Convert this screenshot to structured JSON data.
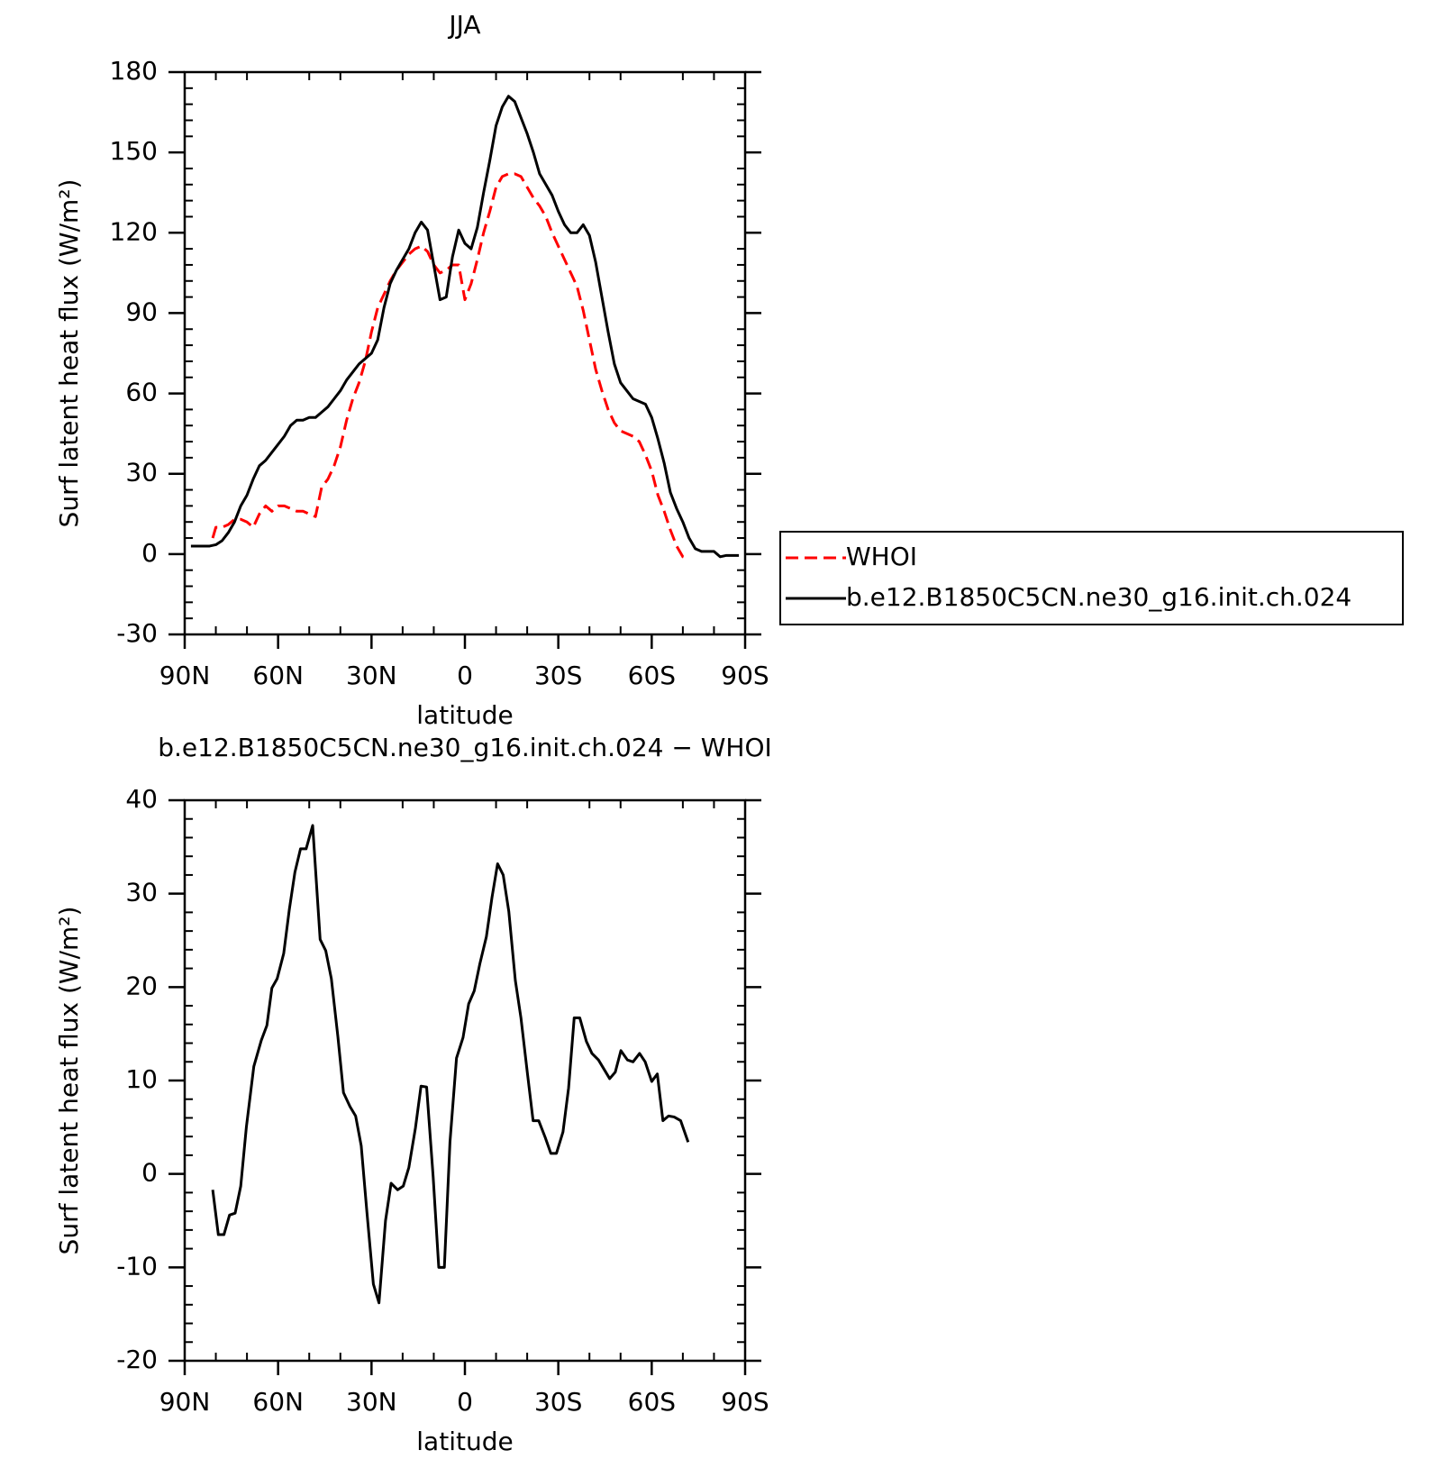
{
  "chart_data": [
    {
      "type": "line",
      "title": "JJA",
      "xlabel": "latitude",
      "ylabel": "Surf latent heat flux (W/m²)",
      "xlim": [
        90,
        -90
      ],
      "xticks": [
        {
          "value": 90,
          "label": "90N"
        },
        {
          "value": 60,
          "label": "60N"
        },
        {
          "value": 30,
          "label": "30N"
        },
        0,
        {
          "value": -30,
          "label": "30S"
        },
        {
          "value": -60,
          "label": "60S"
        },
        {
          "value": -90,
          "label": "90S"
        }
      ],
      "ylim": [
        -30,
        180
      ],
      "yticks": [
        -30,
        0,
        30,
        60,
        90,
        120,
        150,
        180
      ],
      "legend": "right",
      "series": [
        {
          "name": "WHOI",
          "color": "#ff0000",
          "dash": true,
          "x": [
            81,
            80,
            78,
            76,
            74,
            72,
            70,
            68,
            66,
            64,
            62,
            60,
            58,
            56,
            54,
            52,
            50,
            48,
            46,
            44,
            42,
            40,
            38,
            36,
            34,
            32,
            30,
            28,
            26,
            24,
            22,
            20,
            18,
            16,
            14,
            12,
            10,
            8,
            6,
            4,
            2,
            0,
            -2,
            -4,
            -6,
            -8,
            -10,
            -12,
            -14,
            -16,
            -18,
            -20,
            -22,
            -24,
            -26,
            -28,
            -30,
            -32,
            -34,
            -36,
            -38,
            -40,
            -42,
            -44,
            -46,
            -48,
            -50,
            -52,
            -54,
            -56,
            -58,
            -60,
            -62,
            -64,
            -66,
            -68,
            -70,
            -72
          ],
          "values": [
            6,
            10,
            10,
            11,
            13,
            13,
            12,
            10,
            15,
            18,
            16,
            18,
            18,
            17,
            16,
            16,
            15,
            14,
            25,
            28,
            33,
            40,
            50,
            58,
            64,
            72,
            83,
            92,
            97,
            102,
            106,
            109,
            112,
            114,
            115,
            113,
            108,
            105,
            106,
            108,
            108,
            95,
            101,
            110,
            120,
            128,
            137,
            141,
            142,
            142,
            141,
            137,
            133,
            130,
            126,
            120,
            115,
            110,
            105,
            100,
            91,
            80,
            69,
            61,
            54,
            49,
            46,
            45,
            44,
            42,
            37,
            31,
            22,
            16,
            9,
            3,
            -1,
            -2
          ]
        },
        {
          "name": "b.e12.B1850C5CN.ne30_g16.init.ch.024",
          "color": "#000000",
          "dash": false,
          "x": [
            88,
            86,
            84,
            82,
            80,
            78,
            76,
            74,
            72,
            70,
            68,
            66,
            64,
            62,
            60,
            58,
            56,
            54,
            52,
            50,
            48,
            46,
            44,
            42,
            40,
            38,
            36,
            34,
            32,
            30,
            28,
            26,
            24,
            22,
            20,
            18,
            16,
            14,
            12,
            10,
            8,
            6,
            4,
            2,
            0,
            -2,
            -4,
            -6,
            -8,
            -10,
            -12,
            -14,
            -16,
            -18,
            -20,
            -22,
            -24,
            -26,
            -28,
            -30,
            -32,
            -34,
            -36,
            -38,
            -40,
            -42,
            -44,
            -46,
            -48,
            -50,
            -52,
            -54,
            -56,
            -58,
            -60,
            -62,
            -64,
            -66,
            -68,
            -70,
            -72,
            -74,
            -76,
            -78,
            -80,
            -82,
            -84,
            -86,
            -88
          ],
          "values": [
            3,
            3,
            3,
            3,
            3.5,
            5,
            8,
            12,
            18,
            22,
            28,
            33,
            35,
            38,
            41,
            44,
            48,
            50,
            50,
            51,
            51,
            53,
            55,
            58,
            61,
            65,
            68,
            71,
            73,
            75,
            80,
            92,
            101,
            106,
            110,
            114,
            120,
            124,
            121,
            108,
            95,
            96,
            111,
            121,
            116,
            114,
            122,
            135,
            147,
            160,
            167,
            171,
            169,
            163,
            157,
            150,
            142,
            138,
            134,
            128,
            123,
            120,
            120,
            123,
            119,
            109,
            96,
            83,
            71,
            64,
            61,
            58,
            57,
            56,
            51,
            43,
            34,
            23,
            17,
            12,
            6,
            2,
            1,
            1,
            1,
            -1,
            -0.5,
            -0.5,
            -0.5
          ]
        }
      ]
    },
    {
      "type": "line",
      "title": "b.e12.B1850C5CN.ne30_g16.init.ch.024 − WHOI",
      "xlabel": "latitude",
      "ylabel": "Surf latent heat flux (W/m²)",
      "xlim": [
        90,
        -90
      ],
      "xticks": [
        {
          "value": 90,
          "label": "90N"
        },
        {
          "value": 60,
          "label": "60N"
        },
        {
          "value": 30,
          "label": "30N"
        },
        0,
        {
          "value": -30,
          "label": "30S"
        },
        {
          "value": -60,
          "label": "60S"
        },
        {
          "value": -90,
          "label": "90S"
        }
      ],
      "ylim": [
        -20,
        40
      ],
      "yticks": [
        -20,
        -10,
        0,
        10,
        20,
        30,
        40
      ],
      "series": [
        {
          "color": "#000000",
          "dash": false,
          "x": [
            81,
            79.2,
            77.4,
            75.6,
            73.8,
            72,
            70.2,
            67.8,
            65.4,
            63.6,
            62,
            60.3,
            58.2,
            56.4,
            54.6,
            52.8,
            51,
            48.9,
            46.5,
            44.7,
            42.9,
            40.8,
            39,
            36.9,
            35.1,
            33.3,
            31.5,
            29.4,
            27.6,
            25.5,
            23.7,
            21.6,
            19.8,
            18,
            15.9,
            14.1,
            12.3,
            10.2,
            8.4,
            6.6,
            4.8,
            2.7,
            0.6,
            -1.2,
            -3,
            -4.8,
            -6.9,
            -8.7,
            -10.5,
            -12.3,
            -14.1,
            -16.2,
            -18,
            -20.1,
            -21.9,
            -23.7,
            -25.8,
            -27.6,
            -29.4,
            -31.5,
            -33.3,
            -35.1,
            -36.9,
            -39,
            -40.8,
            -42.9,
            -44.7,
            -46.5,
            -48.3,
            -50.1,
            -52.2,
            -54,
            -56.1,
            -57.9,
            -60,
            -61.8,
            -63.6,
            -65.4,
            -67.2,
            -69.3,
            -71.7
          ],
          "values": [
            -1.7,
            -6.5,
            -6.5,
            -4.4,
            -4.2,
            -1.3,
            5,
            11.5,
            14.3,
            15.9,
            19.9,
            20.9,
            23.6,
            28.3,
            32.3,
            34.8,
            34.8,
            37.3,
            25.1,
            23.9,
            20.9,
            14.7,
            8.7,
            7.2,
            6.2,
            3,
            -4,
            -11.8,
            -13.8,
            -5,
            -1,
            -1.7,
            -1.3,
            0.7,
            4.9,
            9.4,
            9.3,
            -0.3,
            -10,
            -10,
            3.4,
            12.4,
            14.6,
            18.2,
            19.6,
            22.5,
            25.4,
            29.6,
            33.2,
            32,
            28.1,
            20.7,
            16.7,
            10.7,
            5.7,
            5.7,
            3.9,
            2.2,
            2.2,
            4.5,
            9.2,
            16.7,
            16.7,
            14.2,
            12.9,
            12.2,
            11.2,
            10.2,
            10.9,
            13.2,
            12.2,
            12,
            12.9,
            12,
            9.9,
            10.7,
            5.7,
            6.2,
            6.1,
            5.7,
            3.4
          ]
        }
      ]
    }
  ]
}
